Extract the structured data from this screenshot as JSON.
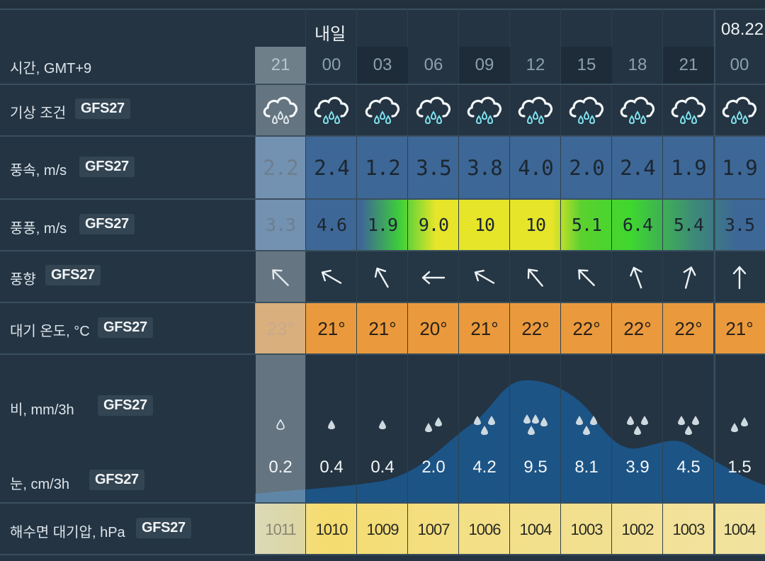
{
  "header": {
    "day_label": "내일",
    "next_day_label": "08.22"
  },
  "labels": {
    "time": "시간, GMT+9",
    "weather": "기상 조건",
    "wind_speed": "풍속, m/s",
    "gust": "풍풍, m/s",
    "wind_dir": "풍향",
    "temp": "대기 온도, °C",
    "rain": "비,  mm/3h",
    "snow": "눈,  cm/3h",
    "pressure": "해수면 대기압, hPa",
    "model": "GFS27"
  },
  "hours": [
    "21",
    "00",
    "03",
    "06",
    "09",
    "12",
    "15",
    "18",
    "21",
    "00"
  ],
  "wind_speed": [
    "2.2",
    "2.4",
    "1.2",
    "3.5",
    "3.8",
    "4.0",
    "2.0",
    "2.4",
    "1.9",
    "1.9"
  ],
  "gust": [
    "3.3",
    "4.6",
    "1.9",
    "9.0",
    "10",
    "10",
    "5.1",
    "6.4",
    "5.4",
    "3.5"
  ],
  "wind_dir_deg": [
    -45,
    -60,
    -30,
    -90,
    -60,
    -40,
    -45,
    -20,
    15,
    0
  ],
  "temp": [
    "23°",
    "21°",
    "21°",
    "20°",
    "21°",
    "22°",
    "22°",
    "22°",
    "22°",
    "21°"
  ],
  "precip": [
    "0.2",
    "0.4",
    "0.4",
    "2.0",
    "4.2",
    "9.5",
    "8.1",
    "3.9",
    "4.5",
    "1.5"
  ],
  "pressure": [
    "1011",
    "1010",
    "1009",
    "1007",
    "1006",
    "1004",
    "1003",
    "1002",
    "1003",
    "1004"
  ],
  "colors": {
    "wind_band": "#3d6796",
    "gust_yellow": "#e6e52a",
    "gust_green": "#3fd72f",
    "temp_band": "#ea9a3d",
    "rain_fill": "#1c5486",
    "pressure_band": "#f1e2a0"
  },
  "icons": {
    "weather": "rain-cloud-icon",
    "wind": "wind-arrow-icon",
    "drop": "raindrop-icon"
  }
}
